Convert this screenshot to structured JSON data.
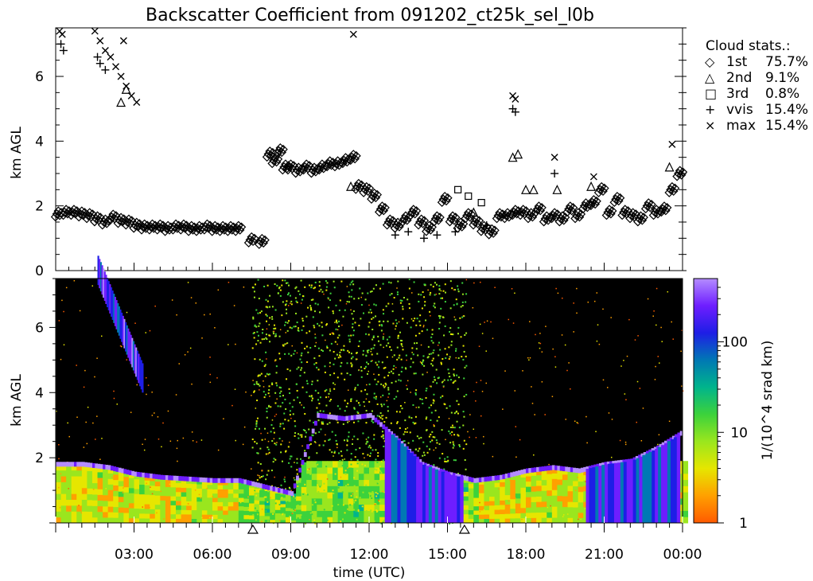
{
  "title": "Backscatter Coefficient from 091202_ct25k_sel_l0b",
  "colors": {
    "background": "#ffffff",
    "ink": "#000000",
    "plot_bg": "#000000",
    "colormap": [
      "#ff5a00",
      "#ffa000",
      "#e6e600",
      "#9ae61e",
      "#3cd23c",
      "#00b48c",
      "#0078b4",
      "#1e1ee6",
      "#6e1eff",
      "#b48cff"
    ]
  },
  "chart_data": [
    {
      "type": "scatter",
      "panel": "cloud-stats",
      "ylabel": "km AGL",
      "ylim": [
        0,
        7.5
      ],
      "yticks": [
        0,
        2,
        4,
        6
      ],
      "xlim": [
        0,
        24
      ],
      "legend_title": "Cloud stats.:",
      "legend_position": "top-right",
      "legend": [
        {
          "symbol": "◇",
          "label": "1st",
          "value": "75.7%"
        },
        {
          "symbol": "△",
          "label": "2nd",
          "value": "9.1%"
        },
        {
          "symbol": "□",
          "label": "3rd",
          "value": "0.8%"
        },
        {
          "symbol": "+",
          "label": "vvis",
          "value": "15.4%"
        },
        {
          "symbol": "×",
          "label": "max",
          "value": "15.4%"
        }
      ],
      "series": [
        {
          "name": "1st",
          "x": [
            0.1,
            0.4,
            0.7,
            1.0,
            1.3,
            1.6,
            1.9,
            2.2,
            2.5,
            2.8,
            3.1,
            3.4,
            3.7,
            4.0,
            4.3,
            4.6,
            4.9,
            5.2,
            5.5,
            5.8,
            6.1,
            6.4,
            6.7,
            7.0,
            7.5,
            7.9,
            8.2,
            8.4,
            8.6,
            8.8,
            9.0,
            9.3,
            9.6,
            9.9,
            10.2,
            10.5,
            10.8,
            11.1,
            11.4,
            11.6,
            11.9,
            12.2,
            12.5,
            12.8,
            13.1,
            13.4,
            13.7,
            14.0,
            14.3,
            14.6,
            14.9,
            15.2,
            15.5,
            15.8,
            16.1,
            16.4,
            16.7,
            17.0,
            17.3,
            17.6,
            17.9,
            18.2,
            18.5,
            18.8,
            19.1,
            19.4,
            19.7,
            20.0,
            20.3,
            20.6,
            20.9,
            21.2,
            21.5,
            21.8,
            22.1,
            22.4,
            22.7,
            23.0,
            23.3,
            23.6,
            23.9
          ],
          "y": [
            1.75,
            1.8,
            1.8,
            1.75,
            1.7,
            1.6,
            1.5,
            1.65,
            1.55,
            1.5,
            1.4,
            1.35,
            1.35,
            1.35,
            1.3,
            1.35,
            1.35,
            1.3,
            1.3,
            1.35,
            1.3,
            1.3,
            1.3,
            1.3,
            0.95,
            0.9,
            3.6,
            3.4,
            3.7,
            3.2,
            3.2,
            3.1,
            3.2,
            3.1,
            3.2,
            3.3,
            3.3,
            3.4,
            3.5,
            2.6,
            2.5,
            2.3,
            1.9,
            1.5,
            1.4,
            1.6,
            1.8,
            1.5,
            1.3,
            1.6,
            2.2,
            1.6,
            1.4,
            1.7,
            1.5,
            1.3,
            1.2,
            1.7,
            1.7,
            1.8,
            1.8,
            1.7,
            1.9,
            1.6,
            1.7,
            1.6,
            1.9,
            1.7,
            2.0,
            2.1,
            2.5,
            1.8,
            2.2,
            1.8,
            1.7,
            1.6,
            2.0,
            1.8,
            1.9,
            2.5,
            3.0
          ]
        },
        {
          "name": "2nd",
          "x": [
            2.5,
            2.7,
            11.3,
            16.0,
            17.5,
            17.7,
            18.0,
            18.3,
            19.2,
            20.5,
            23.5
          ],
          "y": [
            5.2,
            5.6,
            2.6,
            1.8,
            3.5,
            3.6,
            2.5,
            2.5,
            2.5,
            2.6,
            3.2
          ]
        },
        {
          "name": "3rd",
          "x": [
            15.4,
            15.8,
            16.3
          ],
          "y": [
            2.5,
            2.3,
            2.1
          ]
        },
        {
          "name": "vvis",
          "x": [
            0.2,
            0.3,
            1.6,
            1.7,
            1.9,
            13.0,
            13.5,
            14.1,
            14.6,
            15.3,
            16.5,
            17.5,
            17.6,
            19.1
          ],
          "y": [
            7.0,
            6.8,
            6.6,
            6.4,
            6.2,
            1.1,
            1.2,
            1.0,
            1.1,
            1.2,
            1.4,
            5.0,
            4.9,
            3.0
          ]
        },
        {
          "name": "max",
          "x": [
            0.15,
            0.25,
            1.5,
            1.7,
            1.9,
            2.1,
            2.3,
            2.5,
            2.7,
            2.9,
            3.1,
            2.6,
            11.4,
            17.5,
            17.6,
            19.1,
            20.6,
            23.6
          ],
          "y": [
            7.4,
            7.3,
            7.4,
            7.1,
            6.8,
            6.6,
            6.3,
            6.0,
            5.7,
            5.4,
            5.2,
            7.1,
            7.3,
            5.4,
            5.3,
            3.5,
            2.9,
            3.9
          ]
        }
      ]
    },
    {
      "type": "heatmap",
      "panel": "backscatter",
      "ylabel": "km AGL",
      "ylim": [
        0,
        7.5
      ],
      "yticks": [
        2,
        4,
        6
      ],
      "xlabel": "time (UTC)",
      "xlim": [
        0,
        24
      ],
      "xtick_labels": [
        "03:00",
        "06:00",
        "09:00",
        "12:00",
        "15:00",
        "18:00",
        "21:00",
        "00:00"
      ],
      "colorbar_label": "1/(10^4 srad km)",
      "colorbar_scale": "log",
      "colorbar_ticks": [
        "1",
        "10",
        "100"
      ],
      "colorbar_range": [
        1,
        500
      ],
      "bottom_markers_hours": [
        7.55,
        15.65
      ],
      "layers": {
        "low_cloud_top_km": [
          1.8,
          1.8,
          1.7,
          1.5,
          1.4,
          1.35,
          1.3,
          1.3,
          1.1,
          0.9,
          3.3,
          3.2,
          3.3,
          2.6,
          1.8,
          1.5,
          1.3,
          1.4,
          1.6,
          1.7,
          1.6,
          1.8,
          1.9,
          2.3,
          2.8
        ],
        "high_cloud_hours": [
          1.6,
          3.3
        ],
        "high_cloud_km": [
          7.3,
          4.0
        ]
      }
    }
  ]
}
